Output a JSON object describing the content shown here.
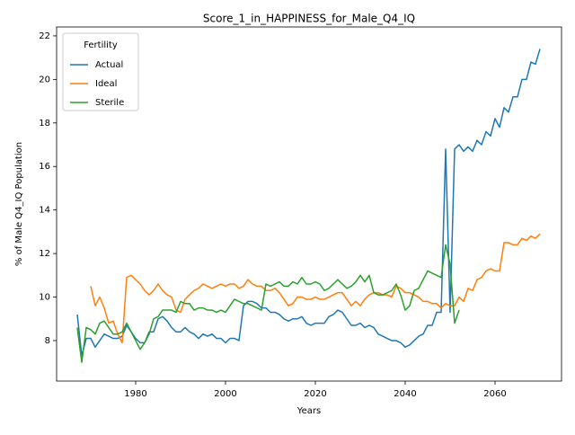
{
  "chart_data": {
    "type": "line",
    "title": "Score_1_in_HAPPINESS_for_Male_Q4_IQ",
    "x_label": "Years",
    "y_label": "% of Male Q4_IQ Population",
    "legend_title": "Fertility",
    "legend_loc": "upper left",
    "grid": false,
    "x": [
      1967,
      1968,
      1969,
      1970,
      1971,
      1972,
      1973,
      1974,
      1975,
      1976,
      1977,
      1978,
      1979,
      1980,
      1981,
      1982,
      1983,
      1984,
      1985,
      1986,
      1987,
      1988,
      1989,
      1990,
      1991,
      1992,
      1993,
      1994,
      1995,
      1996,
      1997,
      1998,
      1999,
      2000,
      2001,
      2002,
      2003,
      2004,
      2005,
      2006,
      2007,
      2008,
      2009,
      2010,
      2011,
      2012,
      2013,
      2014,
      2015,
      2016,
      2017,
      2018,
      2019,
      2020,
      2021,
      2022,
      2023,
      2024,
      2025,
      2026,
      2027,
      2028,
      2029,
      2030,
      2031,
      2032,
      2033,
      2034,
      2035,
      2036,
      2037,
      2038,
      2039,
      2040,
      2041,
      2042,
      2043,
      2044,
      2045,
      2046,
      2047,
      2048,
      2049,
      2050,
      2051,
      2052,
      2053,
      2054,
      2055,
      2056,
      2057,
      2058,
      2059,
      2060,
      2061,
      2062,
      2063,
      2064,
      2065,
      2066,
      2067,
      2068,
      2069,
      2070
    ],
    "series": [
      {
        "name": "Actual",
        "color": "#1f77b4",
        "values": [
          9.2,
          7.3,
          8.1,
          8.1,
          7.7,
          8.0,
          8.3,
          8.2,
          8.1,
          8.1,
          8.2,
          8.7,
          8.4,
          8.1,
          7.9,
          7.9,
          8.4,
          8.4,
          9.0,
          9.1,
          8.9,
          8.6,
          8.4,
          8.4,
          8.6,
          8.4,
          8.3,
          8.1,
          8.3,
          8.2,
          8.3,
          8.1,
          8.1,
          7.9,
          8.1,
          8.1,
          8.0,
          9.6,
          9.8,
          9.8,
          9.7,
          9.5,
          9.5,
          9.3,
          9.3,
          9.2,
          9.0,
          8.9,
          9.0,
          9.0,
          9.1,
          8.8,
          8.7,
          8.8,
          8.8,
          8.8,
          9.1,
          9.2,
          9.4,
          9.3,
          9.0,
          8.7,
          8.7,
          8.8,
          8.6,
          8.7,
          8.6,
          8.3,
          8.2,
          8.1,
          8.0,
          8.0,
          7.9,
          7.7,
          7.8,
          8.0,
          8.2,
          8.3,
          8.7,
          8.7,
          9.3,
          9.3,
          16.8,
          9.3,
          16.8,
          17.0,
          16.7,
          16.9,
          16.7,
          17.2,
          17.0,
          17.6,
          17.4,
          18.2,
          17.8,
          18.7,
          18.5,
          19.2,
          19.2,
          20.0,
          20.0,
          20.8,
          20.7,
          21.4
        ]
      },
      {
        "name": "Ideal",
        "color": "#ff7f0e",
        "values": [
          null,
          null,
          null,
          10.5,
          9.6,
          10.0,
          9.5,
          8.8,
          8.9,
          8.3,
          7.9,
          10.9,
          11.0,
          10.8,
          10.6,
          10.3,
          10.1,
          10.3,
          10.6,
          10.3,
          10.1,
          10.0,
          9.4,
          9.3,
          9.9,
          10.1,
          10.3,
          10.4,
          10.6,
          10.5,
          10.4,
          10.5,
          10.6,
          10.5,
          10.6,
          10.6,
          10.4,
          10.5,
          10.8,
          10.6,
          10.5,
          10.5,
          10.3,
          10.3,
          10.4,
          10.2,
          9.9,
          9.6,
          9.7,
          10.0,
          10.0,
          9.9,
          9.9,
          10.0,
          9.9,
          9.9,
          10.0,
          10.1,
          10.2,
          10.2,
          9.9,
          9.6,
          9.8,
          9.6,
          9.9,
          10.1,
          10.2,
          10.2,
          10.1,
          10.1,
          10.0,
          10.5,
          10.4,
          10.2,
          10.2,
          10.1,
          10.0,
          9.8,
          9.8,
          9.7,
          9.7,
          9.5,
          9.7,
          9.6,
          9.6,
          10.0,
          9.8,
          10.4,
          10.3,
          10.8,
          10.9,
          11.2,
          11.3,
          11.2,
          11.2,
          12.5,
          12.5,
          12.4,
          12.4,
          12.7,
          12.6,
          12.8,
          12.7,
          12.9
        ]
      },
      {
        "name": "Sterile",
        "color": "#2ca02c",
        "values": [
          8.6,
          7.0,
          8.6,
          8.5,
          8.3,
          8.8,
          8.9,
          8.6,
          8.3,
          8.3,
          8.4,
          8.8,
          8.4,
          8.0,
          7.6,
          7.9,
          8.3,
          9.0,
          9.1,
          9.4,
          9.4,
          9.4,
          9.3,
          9.8,
          9.7,
          9.7,
          9.4,
          9.5,
          9.5,
          9.4,
          9.4,
          9.3,
          9.4,
          9.3,
          9.6,
          9.9,
          9.8,
          9.7,
          9.7,
          9.6,
          9.5,
          9.4,
          10.6,
          10.5,
          10.6,
          10.7,
          10.5,
          10.5,
          10.7,
          10.6,
          10.9,
          10.6,
          10.6,
          10.7,
          10.6,
          10.3,
          10.4,
          10.6,
          10.8,
          10.6,
          10.4,
          10.5,
          10.7,
          11.0,
          10.7,
          11.0,
          10.2,
          10.1,
          10.1,
          10.2,
          10.3,
          10.6,
          10.1,
          9.4,
          9.6,
          10.3,
          10.4,
          10.8,
          11.2,
          11.1,
          11.0,
          10.9,
          12.4,
          11.5,
          8.8,
          9.4,
          null,
          null,
          null,
          null,
          null,
          null,
          null,
          null,
          null,
          null,
          null,
          null,
          null,
          null,
          null,
          null,
          null,
          null
        ]
      }
    ],
    "xlim": [
      1962.4,
      2074.8
    ],
    "ylim": [
      6.14,
      22.41
    ],
    "xticks": [
      1980,
      2000,
      2020,
      2040,
      2060
    ],
    "yticks": [
      8,
      10,
      12,
      14,
      16,
      18,
      20,
      22
    ]
  }
}
